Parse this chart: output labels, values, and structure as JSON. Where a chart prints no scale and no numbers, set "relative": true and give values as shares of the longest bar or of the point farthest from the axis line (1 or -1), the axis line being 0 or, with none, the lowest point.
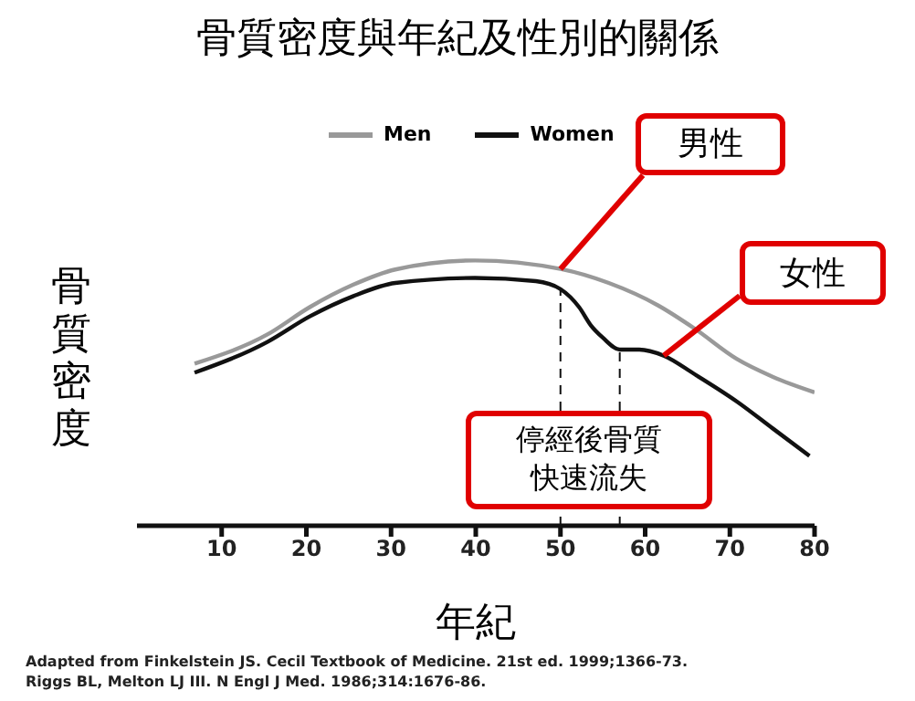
{
  "chart_data": {
    "type": "line",
    "title": "骨質密度與年紀及性別的關係",
    "xlabel": "年紀",
    "ylabel": "骨質密度",
    "relative": true,
    "xlim": [
      0,
      80
    ],
    "xticks": [
      10,
      20,
      30,
      40,
      50,
      60,
      70,
      80
    ],
    "tick_labels": "x",
    "grid": false,
    "legend": "top",
    "marker": "none",
    "line_style": "solid",
    "series": [
      {
        "name": "Men",
        "color": "#999999",
        "x": [
          6.8,
          15.4,
          20.4,
          25.5,
          30.5,
          39.9,
          50,
          55.7,
          61.5,
          65.8,
          70.8,
          75.1,
          80
        ],
        "values": [
          0.611,
          0.721,
          0.824,
          0.908,
          0.966,
          1.0,
          0.968,
          0.915,
          0.831,
          0.744,
          0.629,
          0.561,
          0.503
        ]
      },
      {
        "name": "Women",
        "color": "#111111",
        "x": [
          6.8,
          15.4,
          20.4,
          25.5,
          30.5,
          39.9,
          47.1,
          50,
          52.2,
          53.6,
          55,
          57,
          59.3,
          62.2,
          65.8,
          70.8,
          75.1,
          79.4
        ],
        "values": [
          0.577,
          0.693,
          0.789,
          0.865,
          0.915,
          0.934,
          0.922,
          0.892,
          0.824,
          0.755,
          0.709,
          0.664,
          0.664,
          0.641,
          0.572,
          0.469,
          0.366,
          0.263
        ]
      }
    ],
    "ref_lines": [
      {
        "axis": "x",
        "value": 50,
        "line_style": "dashed",
        "color": "#111111"
      },
      {
        "axis": "x",
        "value": 57,
        "line_style": "dashed",
        "color": "#111111"
      }
    ],
    "annotations": [
      {
        "text": "男性",
        "x": 50,
        "y": 0.968
      },
      {
        "text": "女性",
        "x": 62.2,
        "y": 0.641
      },
      "停經後骨質快速流失",
      "Adapted from Finkelstein JS. Cecil Textbook of Medicine. 21st ed. 1999;1366-73.",
      "Riggs BL, Melton LJ III. N Engl J Med. 1986;314:1676-86."
    ]
  }
}
